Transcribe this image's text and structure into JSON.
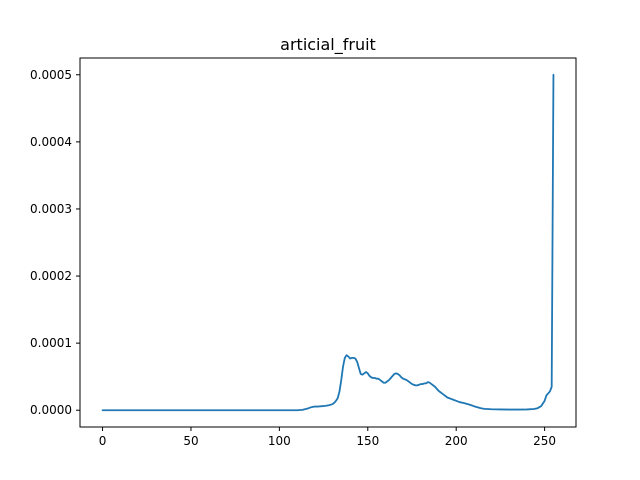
{
  "chart_data": {
    "type": "line",
    "title": "articial_fruit",
    "xlabel": "",
    "ylabel": "",
    "xlim": [
      -12.75,
      267.75
    ],
    "ylim": [
      -2.5e-05,
      0.000525
    ],
    "grid": false,
    "legend": "none",
    "x_ticks": [
      {
        "value": 0,
        "label": "0"
      },
      {
        "value": 50,
        "label": "50"
      },
      {
        "value": 100,
        "label": "100"
      },
      {
        "value": 150,
        "label": "150"
      },
      {
        "value": 200,
        "label": "200"
      },
      {
        "value": 250,
        "label": "250"
      }
    ],
    "y_ticks": [
      {
        "value": 0.0,
        "label": "0.0000"
      },
      {
        "value": 0.0001,
        "label": "0.0001"
      },
      {
        "value": 0.0002,
        "label": "0.0002"
      },
      {
        "value": 0.0003,
        "label": "0.0003"
      },
      {
        "value": 0.0004,
        "label": "0.0004"
      },
      {
        "value": 0.0005,
        "label": "0.0005"
      }
    ],
    "series": [
      {
        "color": "#1f77b4",
        "x": [
          0,
          50,
          100,
          110,
          113,
          116,
          118,
          120,
          122,
          124,
          126,
          128,
          130,
          131,
          132,
          133,
          134,
          135,
          136,
          137,
          138,
          139,
          140,
          141,
          142,
          143,
          144,
          145,
          146,
          147,
          148,
          149,
          150,
          151,
          152,
          153,
          154,
          155,
          156,
          157,
          158,
          159,
          160,
          161,
          162,
          163,
          164,
          165,
          166,
          167,
          168,
          169,
          170,
          171,
          172,
          173,
          174,
          175,
          176,
          177,
          178,
          179,
          180,
          181,
          182,
          183,
          184,
          185,
          186,
          187,
          188,
          189,
          190,
          191,
          192,
          193,
          194,
          195,
          196,
          197,
          198,
          200,
          202,
          204,
          206,
          208,
          210,
          212,
          214,
          216,
          220,
          225,
          230,
          235,
          240,
          244,
          246,
          248,
          250,
          251,
          252,
          253,
          254,
          255
        ],
        "y": [
          0.0,
          0.0,
          0.0,
          0.0,
          5e-07,
          2.5e-06,
          4.5e-06,
          5.5e-06,
          5.5e-06,
          6e-06,
          6.5e-06,
          7.5e-06,
          9e-06,
          1.1e-05,
          1.4e-05,
          1.8e-05,
          2.8e-05,
          4.5e-05,
          6.5e-05,
          7.8e-05,
          8.2e-05,
          8e-05,
          7.7e-05,
          7.8e-05,
          7.8e-05,
          7.7e-05,
          7.2e-05,
          6.3e-05,
          5.4e-05,
          5.3e-05,
          5.5e-05,
          5.7e-05,
          5.5e-05,
          5.1e-05,
          4.9e-05,
          4.8e-05,
          4.8e-05,
          4.7e-05,
          4.7e-05,
          4.5e-05,
          4.3e-05,
          4.1e-05,
          4.1e-05,
          4.3e-05,
          4.5e-05,
          4.8e-05,
          5.1e-05,
          5.4e-05,
          5.5e-05,
          5.4e-05,
          5.2e-05,
          4.9e-05,
          4.7e-05,
          4.6e-05,
          4.5e-05,
          4.3e-05,
          4.1e-05,
          3.9e-05,
          3.8e-05,
          3.7e-05,
          3.7e-05,
          3.8e-05,
          3.9e-05,
          3.9e-05,
          4e-05,
          4e-05,
          4.2e-05,
          4.1e-05,
          3.9e-05,
          3.7e-05,
          3.5e-05,
          3.2e-05,
          2.9e-05,
          2.7e-05,
          2.5e-05,
          2.3e-05,
          2.1e-05,
          1.9e-05,
          1.8e-05,
          1.7e-05,
          1.6e-05,
          1.4e-05,
          1.2e-05,
          1.1e-05,
          9.5e-06,
          8e-06,
          6e-06,
          4.5e-06,
          3e-06,
          2e-06,
          1.5e-06,
          1.2e-06,
          1e-06,
          1e-06,
          1.2e-06,
          1.8e-06,
          3e-06,
          6e-06,
          1.4e-05,
          2.2e-05,
          2.5e-05,
          2.8e-05,
          3.5e-05,
          0.0005
        ]
      }
    ]
  }
}
